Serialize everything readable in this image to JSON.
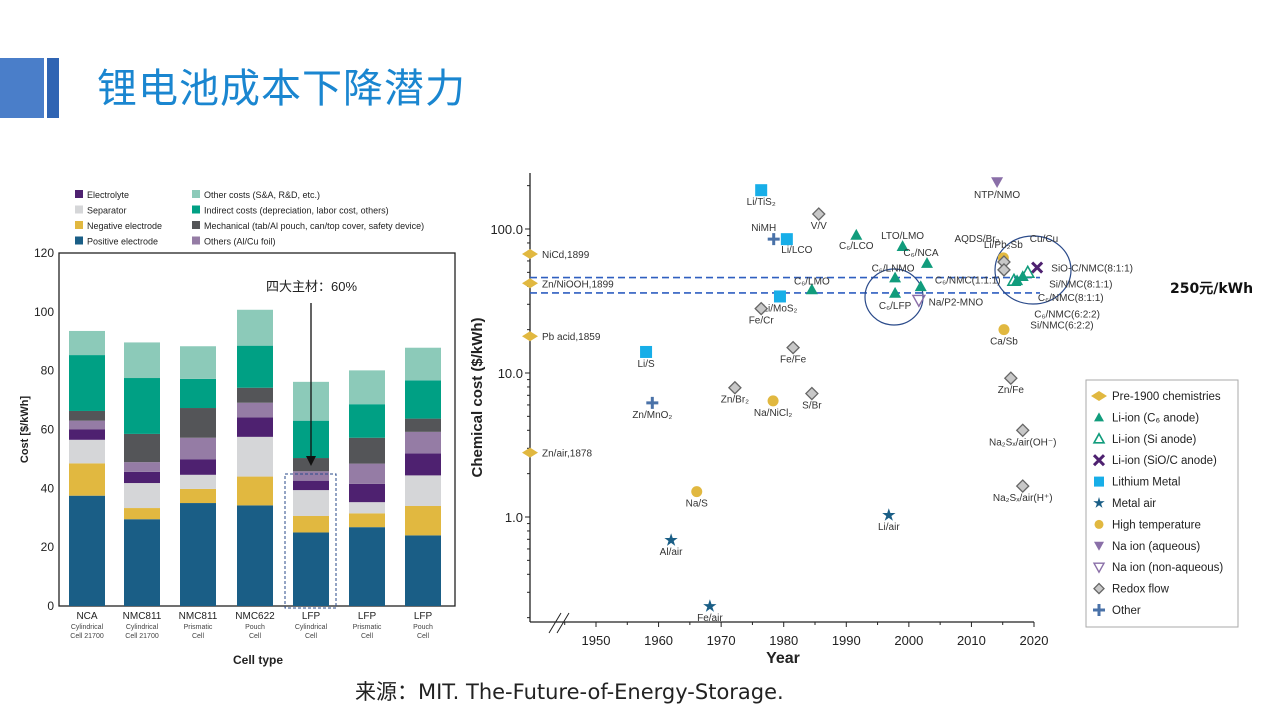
{
  "header": {
    "title": "锂电池成本下降潜力",
    "accent": "#1a86d0"
  },
  "footer": {
    "source": "来源：MIT. The-Future-of-Energy-Storage."
  },
  "annotation": {
    "main_materials": "四大主材：60%",
    "price_line": "250元/kWh"
  },
  "chart_data": [
    {
      "type": "bar",
      "stacked": true,
      "xlabel": "Cell type",
      "ylabel": "Cost [$/kWh]",
      "ylim": [
        0,
        120
      ],
      "yticks": [
        0,
        20,
        40,
        60,
        80,
        100,
        120
      ],
      "legend_placement": "top",
      "categories": [
        {
          "name": "NCA",
          "sub1": "Cylindrical",
          "sub2": "Cell 21700"
        },
        {
          "name": "NMC811",
          "sub1": "Cylindrical",
          "sub2": "Cell 21700"
        },
        {
          "name": "NMC811",
          "sub1": "Prismatic",
          "sub2": "Cell"
        },
        {
          "name": "NMC622",
          "sub1": "Pouch",
          "sub2": "Cell"
        },
        {
          "name": "LFP",
          "sub1": "Cylindrical",
          "sub2": "Cell"
        },
        {
          "name": "LFP",
          "sub1": "Prismatic",
          "sub2": "Cell"
        },
        {
          "name": "LFP",
          "sub1": "Pouch",
          "sub2": "Cell"
        }
      ],
      "series": [
        {
          "name": "Positive electrode",
          "color": "#1a5e86",
          "values": [
            37.5,
            29.5,
            35,
            34.2,
            25,
            26.8,
            24
          ]
        },
        {
          "name": "Negative electrode",
          "color": "#e1b840",
          "values": [
            11,
            3.8,
            4.8,
            9.8,
            5.6,
            4.7,
            10
          ]
        },
        {
          "name": "Separator",
          "color": "#d5d6d8",
          "values": [
            8,
            8.5,
            4.8,
            13.5,
            8.8,
            3.8,
            10.4
          ]
        },
        {
          "name": "Electrolyte",
          "color": "#4e2170",
          "values": [
            3.5,
            3.8,
            5.3,
            6.6,
            3.2,
            6.2,
            7.5
          ]
        },
        {
          "name": "Others (Al/Cu foil)",
          "color": "#957ca5",
          "values": [
            3,
            3.3,
            7.3,
            5,
            3.2,
            6.9,
            7.3
          ]
        },
        {
          "name": "Mechanical (tab/Al pouch, can/top cover, safety device)",
          "color": "#545558",
          "values": [
            3.3,
            9.6,
            10.1,
            5.1,
            4.5,
            8.8,
            4.5
          ]
        },
        {
          "name": "Indirect costs (depreciation, labor cost, others)",
          "color": "#00a084",
          "values": [
            19,
            19,
            9.9,
            14.3,
            12.7,
            11.4,
            13
          ]
        },
        {
          "name": "Other costs (S&A, R&D, etc.)",
          "color": "#8ccab9",
          "values": [
            8.2,
            12.1,
            11.1,
            12.2,
            13.2,
            11.5,
            11.1
          ]
        }
      ]
    },
    {
      "type": "scatter",
      "xlabel": "Year",
      "ylabel": "Chemical cost ($/kWh)",
      "yscale": "log",
      "ylim": [
        0.19,
        245
      ],
      "xlim": [
        1940,
        2020
      ],
      "xticks": [
        1950,
        1960,
        1970,
        1980,
        1990,
        2000,
        2010,
        2020
      ],
      "yticks": [
        {
          "v": 1,
          "t": "1.0"
        },
        {
          "v": 10,
          "t": "10.0"
        },
        {
          "v": 100,
          "t": "100.0"
        }
      ],
      "legend_placement": "bottom-right",
      "reference_lines": [
        46,
        36
      ],
      "series": [
        {
          "name": "Pre-1900 chemistries",
          "marker": "diamond-wide",
          "color": "#e1b840",
          "points": [
            {
              "label": "NiCd,1899",
              "y": 67
            },
            {
              "label": "Zn/NiOOH,1899",
              "y": 42
            },
            {
              "label": "Pb acid,1859",
              "y": 18
            },
            {
              "label": "Zn/air,1878",
              "y": 2.8
            }
          ]
        },
        {
          "name": "Li-ion (C₆ anode)",
          "marker": "triangle",
          "color": "#119c7c",
          "points": [
            {
              "label": "C₆/LCO",
              "x": 1991.6,
              "y": 91
            },
            {
              "label": "LTO/LMO",
              "x": 1999,
              "y": 76
            },
            {
              "label": "C₆/NCA",
              "x": 2002.9,
              "y": 58
            },
            {
              "label": "C₆/LNMO",
              "x": 1997.8,
              "y": 46
            },
            {
              "label": "C₆/LMO",
              "x": 1984.5,
              "y": 38
            },
            {
              "label": "C₆/LFP",
              "x": 1997.8,
              "y": 36
            },
            {
              "label": "C₆/NMC(1:1:1)",
              "x": 2001.9,
              "y": 40
            },
            {
              "label": "C₆/NMC(8:1:1)",
              "x": 2018.2,
              "y": 47
            },
            {
              "label": "C₆/NMC(6:2:2)",
              "x": 2017.3,
              "y": 44
            }
          ]
        },
        {
          "name": "Li-ion (Si anode)",
          "marker": "triangle-open",
          "color": "#119c7c",
          "points": [
            {
              "label": "Si/NMC(8:1:1)",
              "x": 2019,
              "y": 50
            },
            {
              "label": "Si/NMC(6:2:2)",
              "x": 2016.8,
              "y": 44
            }
          ]
        },
        {
          "name": "Li-ion (SiO/C anode)",
          "marker": "x",
          "color": "#4e2170",
          "points": [
            {
              "label": "SiO-C/NMC(8:1:1)",
              "x": 2020.5,
              "y": 54
            }
          ]
        },
        {
          "name": "Lithium Metal",
          "marker": "square",
          "color": "#17aee8",
          "points": [
            {
              "label": "Li/TiS₂",
              "x": 1976.4,
              "y": 186
            },
            {
              "label": "Li/LCO",
              "x": 1980.5,
              "y": 85
            },
            {
              "label": "Li/MoS₂",
              "x": 1979.4,
              "y": 34
            },
            {
              "label": "Li/S",
              "x": 1958,
              "y": 14
            }
          ]
        },
        {
          "name": "Metal air",
          "marker": "star",
          "color": "#1a5e86",
          "points": [
            {
              "label": "Li/air",
              "x": 1996.8,
              "y": 1.03
            },
            {
              "label": "Al/air",
              "x": 1962,
              "y": 0.69
            },
            {
              "label": "Fe/air",
              "x": 1968.2,
              "y": 0.24
            }
          ]
        },
        {
          "name": "High temperature",
          "marker": "circle",
          "color": "#e1b840",
          "points": [
            {
              "label": "Na/NiCl₂",
              "x": 1978.3,
              "y": 6.4
            },
            {
              "label": "Na/S",
              "x": 1966.1,
              "y": 1.5
            },
            {
              "label": "Ca/Sb",
              "x": 2015.2,
              "y": 20
            },
            {
              "label": "Li/Pb₂Sb",
              "x": 2015.1,
              "y": 63
            }
          ]
        },
        {
          "name": "Na ion (aqueous)",
          "marker": "triangle-down",
          "color": "#8a6fa8",
          "points": [
            {
              "label": "NTP/NMO",
              "x": 2014.1,
              "y": 212
            }
          ]
        },
        {
          "name": "Na ion (non-aqueous)",
          "marker": "triangle-down-open",
          "color": "#8a6fa8",
          "points": [
            {
              "label": "Na/P2-MNO",
              "x": 2001.6,
              "y": 32
            }
          ]
        },
        {
          "name": "Redox flow",
          "marker": "diamond",
          "color": "#777777",
          "points": [
            {
              "label": "V/V",
              "x": 1985.6,
              "y": 127
            },
            {
              "label": "Fe/Cr",
              "x": 1976.4,
              "y": 28
            },
            {
              "label": "Fe/Fe",
              "x": 1981.5,
              "y": 15
            },
            {
              "label": "Zn/Br₂",
              "x": 1972.2,
              "y": 7.9
            },
            {
              "label": "S/Br",
              "x": 1984.5,
              "y": 7.2
            },
            {
              "label": "AQDS/Br₂",
              "x": 2015.2,
              "y": 59
            },
            {
              "label": "Cu/Cu",
              "x": 2015.2,
              "y": 52
            },
            {
              "label": "Zn/Fe",
              "x": 2016.3,
              "y": 9.2
            },
            {
              "label": "Na₂Sₓ/air(OH⁻)",
              "x": 2018.2,
              "y": 4.0
            },
            {
              "label": "Na₂Sₓ/air(H⁺)",
              "x": 2018.2,
              "y": 1.64
            }
          ]
        },
        {
          "name": "Other",
          "marker": "plus",
          "color": "#4a72a8",
          "points": [
            {
              "label": "NiMH",
              "x": 1978.4,
              "y": 85
            },
            {
              "label": "Zn/MnO₂",
              "x": 1959,
              "y": 6.2
            }
          ]
        }
      ]
    }
  ]
}
